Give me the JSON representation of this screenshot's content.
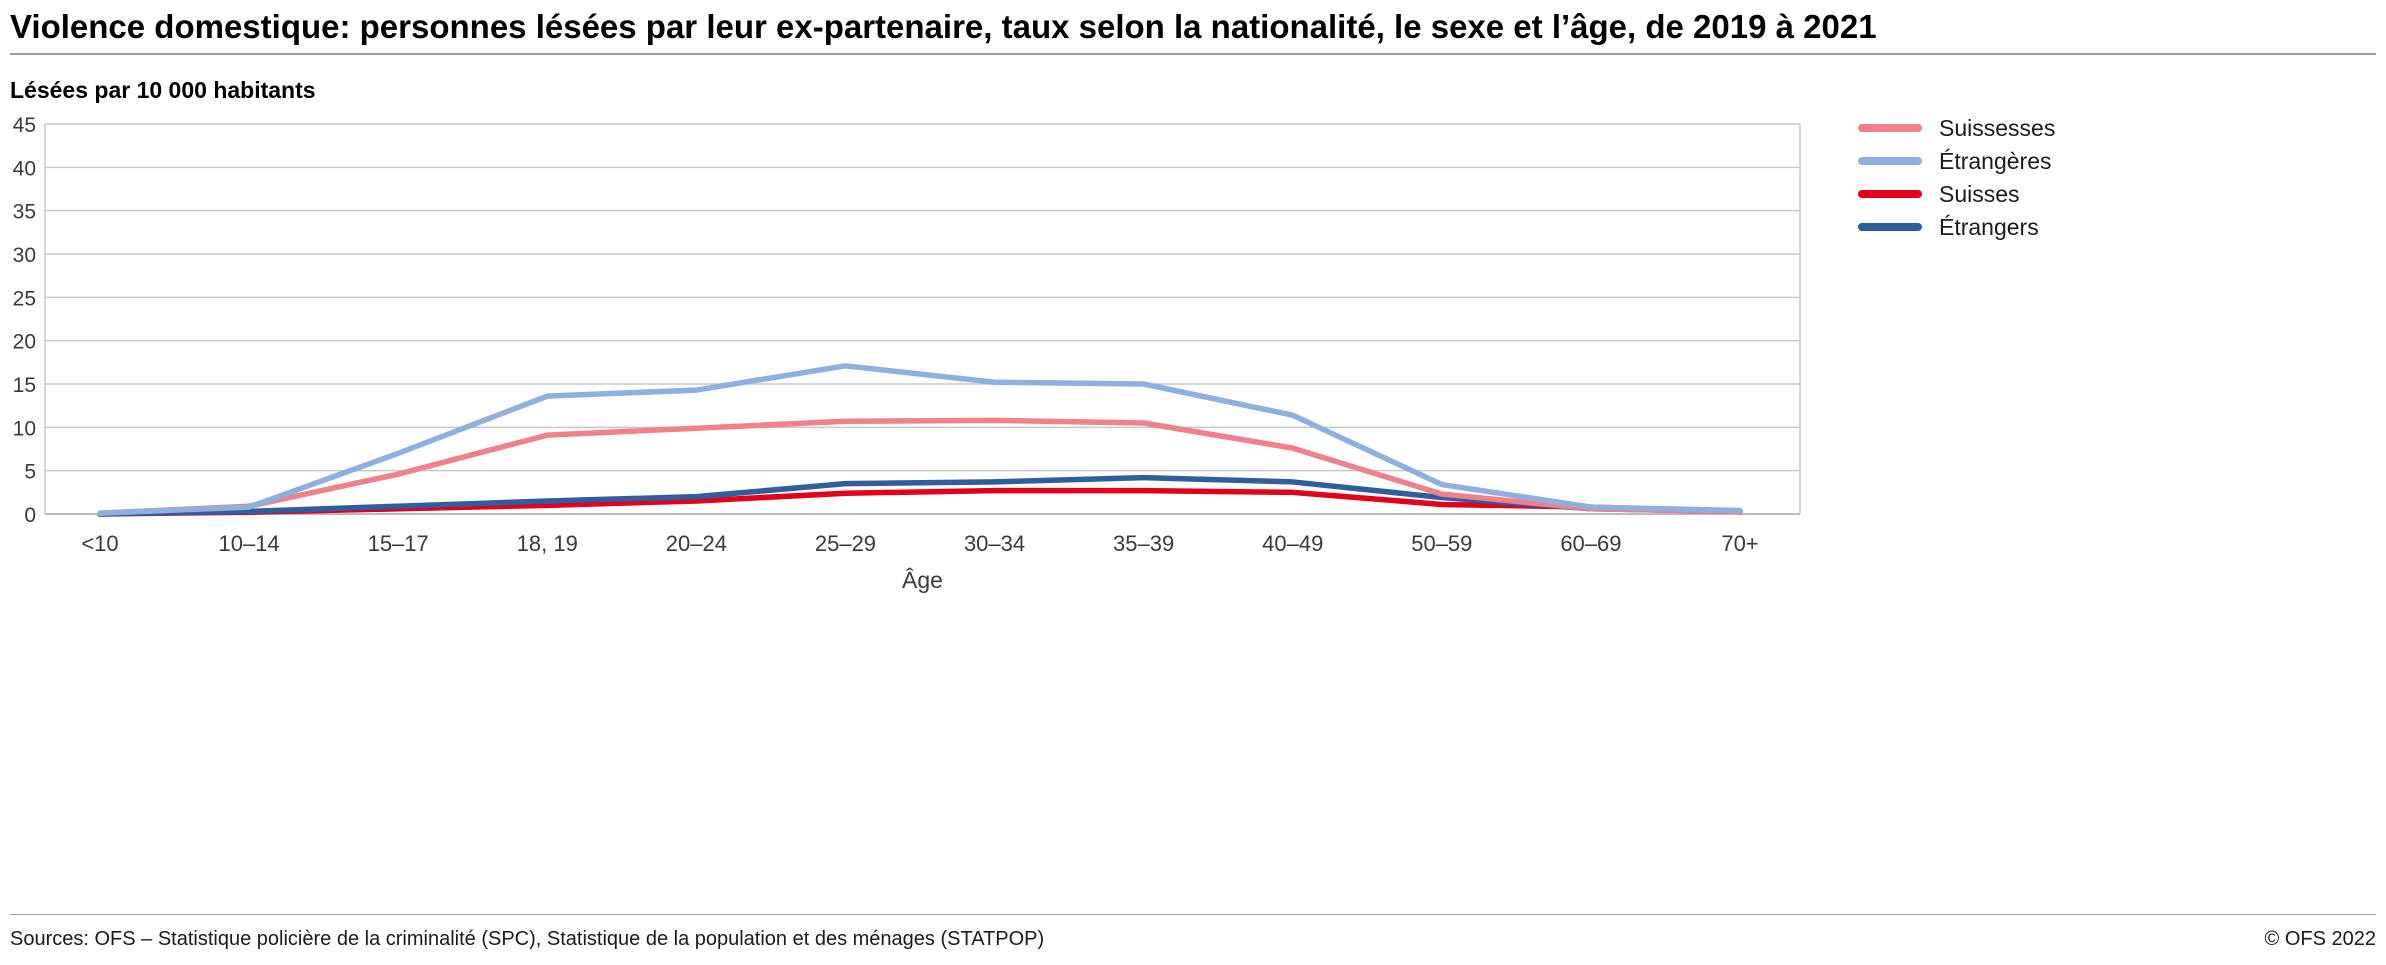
{
  "title": "Violence domestique: personnes lésées par leur ex-partenaire, taux selon la nationalité, le sexe et l’âge, de 2019 à 2021",
  "subtitle": "Lésées par 10 000 habitants",
  "footer": {
    "sources": "Sources: OFS – Statistique policière de la criminalité (SPC), Statistique de la population et des ménages (STATPOP)",
    "copyright": "© OFS 2022"
  },
  "chart_data": {
    "type": "line",
    "title": "Violence domestique: personnes lésées par leur ex-partenaire, taux selon la nationalité, le sexe et l’âge, de 2019 à 2021",
    "xlabel": "Âge",
    "ylabel": "Lésées par 10 000 habitants",
    "ylim": [
      0,
      45
    ],
    "ytick_step": 5,
    "grid": true,
    "legend_position": "top-right",
    "categories": [
      "<10",
      "10–14",
      "15–17",
      "18, 19",
      "20–24",
      "25–29",
      "30–34",
      "35–39",
      "40–49",
      "50–59",
      "60–69",
      "70+"
    ],
    "series": [
      {
        "name": "Suissesses",
        "color": "#f0808b",
        "values": [
          0.1,
          0.9,
          4.6,
          9.1,
          9.9,
          10.7,
          10.8,
          10.5,
          7.6,
          2.3,
          0.6,
          0.3
        ]
      },
      {
        "name": "Étrangères",
        "color": "#8fb0de",
        "values": [
          0.1,
          0.8,
          7.0,
          13.6,
          14.3,
          17.1,
          15.2,
          15.0,
          11.4,
          3.4,
          0.8,
          0.4
        ]
      },
      {
        "name": "Suisses",
        "color": "#e2001a",
        "values": [
          0.0,
          0.2,
          0.6,
          1.0,
          1.5,
          2.4,
          2.7,
          2.7,
          2.5,
          1.1,
          0.8,
          0.3
        ]
      },
      {
        "name": "Étrangers",
        "color": "#2f5d9e",
        "values": [
          0.0,
          0.3,
          0.9,
          1.5,
          2.0,
          3.5,
          3.7,
          4.2,
          3.7,
          1.9,
          0.6,
          0.3
        ]
      }
    ]
  }
}
